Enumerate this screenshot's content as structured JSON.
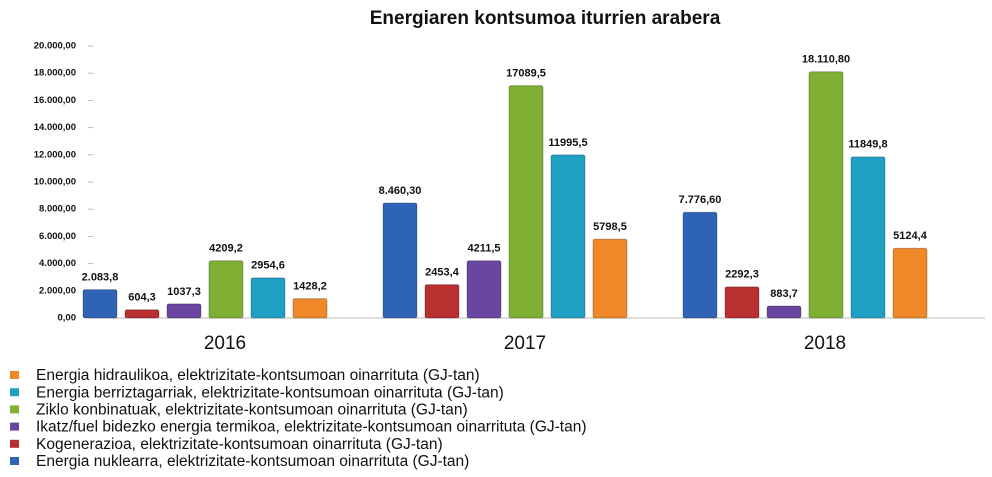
{
  "chart_data": {
    "type": "bar",
    "title": "Energiaren kontsumoa iturrien arabera",
    "categories": [
      "2016",
      "2017",
      "2018"
    ],
    "series": [
      {
        "name": "Energia nuklearra, elektrizitate-kontsumoan oinarrituta (GJ-tan)",
        "color": "#2f63b5",
        "values": [
          2083.8,
          8460.3,
          7776.6
        ],
        "value_labels": [
          "2.083,8",
          "8.460,30",
          "7.776,60"
        ]
      },
      {
        "name": "Kogenerazioa, elektrizitate-kontsumoan oinarrituta (GJ-tan)",
        "color": "#b8302f",
        "values": [
          604.3,
          2453.4,
          2292.3
        ],
        "value_labels": [
          "604,3",
          "2453,4",
          "2292,3"
        ]
      },
      {
        "name": "Ikatz/fuel bidezko energia termikoa, elektrizitate-kontsumoan oinarrituta (GJ-tan)",
        "color": "#6a46a0",
        "values": [
          1037.3,
          4211.5,
          883.7
        ],
        "value_labels": [
          "1037,3",
          "4211,5",
          "883,7"
        ]
      },
      {
        "name": "Ziklo konbinatuak, elektrizitate-kontsumoan oinarrituta (GJ-tan)",
        "color": "#7fb034",
        "values": [
          4209.2,
          17089.5,
          18110.8
        ],
        "value_labels": [
          "4209,2",
          "17089,5",
          "18.110,80"
        ]
      },
      {
        "name": "Energia berriztagarriak, elektrizitate-kontsumoan oinarrituta (GJ-tan)",
        "color": "#1f9fc4",
        "values": [
          2954.6,
          11995.5,
          11849.8
        ],
        "value_labels": [
          "2954,6",
          "11995,5",
          "11849,8"
        ]
      },
      {
        "name": "Energia hidraulikoa, elektrizitate-kontsumoan oinarrituta (GJ-tan)",
        "color": "#f0882a",
        "values": [
          1428.2,
          5798.5,
          5124.4
        ],
        "value_labels": [
          "1428,2",
          "5798,5",
          "5124,4"
        ]
      }
    ],
    "ylim": [
      0,
      20000
    ],
    "yticks": [
      {
        "value": 0,
        "label": "0,00"
      },
      {
        "value": 2000,
        "label": "2.000,00"
      },
      {
        "value": 4000,
        "label": "4.000,00"
      },
      {
        "value": 6000,
        "label": "6.000,00"
      },
      {
        "value": 8000,
        "label": "8.000,00"
      },
      {
        "value": 10000,
        "label": "10.000,00"
      },
      {
        "value": 12000,
        "label": "12.000,00"
      },
      {
        "value": 14000,
        "label": "14.000,00"
      },
      {
        "value": 16000,
        "label": "16.000,00"
      },
      {
        "value": 18000,
        "label": "18.000,00"
      },
      {
        "value": 20000,
        "label": "20.000,00"
      }
    ],
    "grid": false
  }
}
